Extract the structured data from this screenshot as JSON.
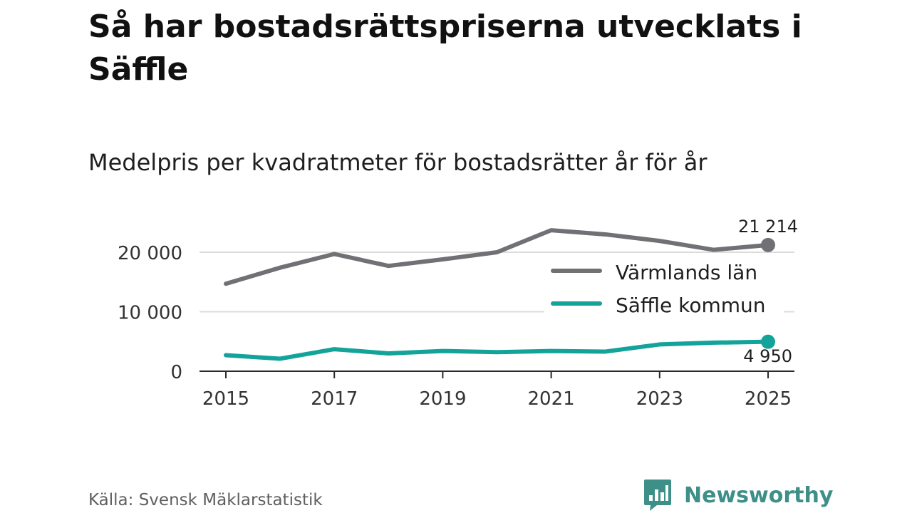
{
  "title": "Så har bostadsrättspriserna utvecklats i Säffle",
  "subtitle": "Medelpris per kvadratmeter för bostadsrätter år för år",
  "source": "Källa: Svensk Mäklarstatistik",
  "brand": {
    "name": "Newsworthy",
    "icon": "newsworthy-logo-icon",
    "color": "#3d8f88"
  },
  "chart_data": {
    "type": "line",
    "x": [
      2015,
      2016,
      2017,
      2018,
      2019,
      2020,
      2021,
      2022,
      2023,
      2024,
      2025
    ],
    "x_ticks": [
      "2015",
      "2017",
      "2019",
      "2021",
      "2023",
      "2025"
    ],
    "y_ticks": [
      "0",
      "10 000",
      "20 000"
    ],
    "ylim": [
      0,
      24000
    ],
    "grid": true,
    "legend": "inside-right",
    "series": [
      {
        "name": "Värmlands län",
        "color": "#717074",
        "values": [
          14700,
          17400,
          19700,
          17700,
          18800,
          20000,
          23700,
          23000,
          21900,
          20400,
          21214
        ],
        "end_label": "21 214"
      },
      {
        "name": "Säffle kommun",
        "color": "#14a39a",
        "values": [
          2700,
          2100,
          3700,
          3000,
          3400,
          3200,
          3400,
          3300,
          4500,
          4800,
          4950
        ],
        "end_label": "4 950"
      }
    ]
  }
}
